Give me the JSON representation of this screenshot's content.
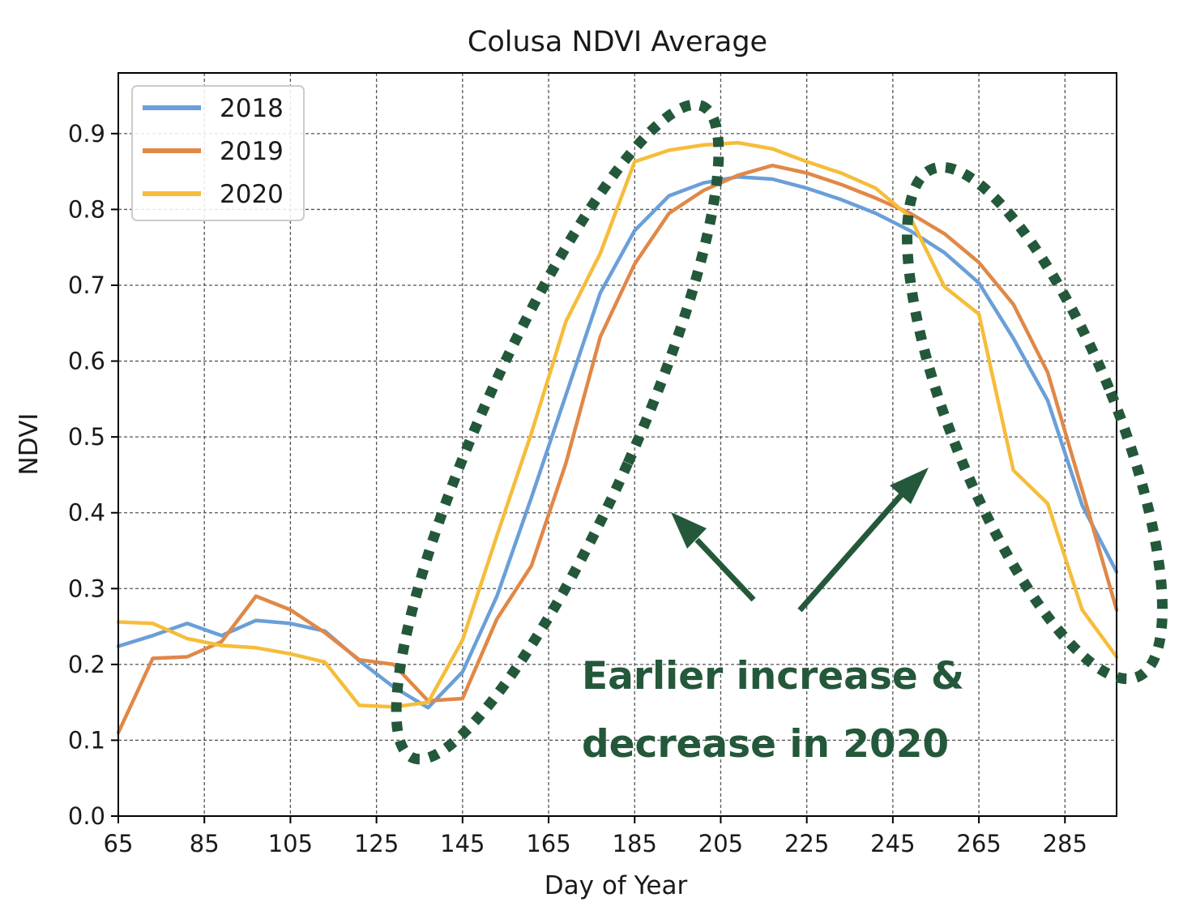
{
  "chart_data": {
    "type": "line",
    "title": "Colusa NDVI Average",
    "xlabel": "Day of Year",
    "ylabel": "NDVI",
    "xlim": [
      65,
      297
    ],
    "ylim": [
      0.0,
      0.98
    ],
    "x_ticks": [
      65,
      85,
      105,
      125,
      145,
      165,
      185,
      205,
      225,
      245,
      265,
      285
    ],
    "y_ticks": [
      0.0,
      0.1,
      0.2,
      0.3,
      0.4,
      0.5,
      0.6,
      0.7,
      0.8,
      0.9
    ],
    "grid": true,
    "legend_position": "top-left",
    "series": [
      {
        "name": "2018",
        "color": "#6a9fd8",
        "x": [
          65,
          73,
          81,
          89,
          97,
          105,
          113,
          121,
          129,
          137,
          145,
          153,
          161,
          169,
          177,
          185,
          193,
          201,
          209,
          217,
          225,
          233,
          241,
          249,
          257,
          265,
          273,
          281,
          289,
          297
        ],
        "y": [
          0.224,
          0.238,
          0.254,
          0.238,
          0.258,
          0.254,
          0.244,
          0.205,
          0.17,
          0.143,
          0.19,
          0.29,
          0.42,
          0.555,
          0.69,
          0.772,
          0.818,
          0.835,
          0.843,
          0.84,
          0.828,
          0.813,
          0.795,
          0.772,
          0.743,
          0.703,
          0.63,
          0.548,
          0.41,
          0.322
        ]
      },
      {
        "name": "2019",
        "color": "#e08848",
        "x": [
          65,
          73,
          81,
          89,
          97,
          105,
          113,
          121,
          129,
          137,
          145,
          153,
          161,
          169,
          177,
          185,
          193,
          201,
          209,
          217,
          225,
          233,
          241,
          249,
          257,
          265,
          273,
          281,
          289,
          297
        ],
        "y": [
          0.11,
          0.208,
          0.21,
          0.23,
          0.29,
          0.272,
          0.242,
          0.206,
          0.2,
          0.152,
          0.155,
          0.26,
          0.33,
          0.465,
          0.632,
          0.728,
          0.795,
          0.825,
          0.845,
          0.858,
          0.848,
          0.833,
          0.815,
          0.795,
          0.768,
          0.73,
          0.675,
          0.585,
          0.43,
          0.272
        ]
      },
      {
        "name": "2020",
        "color": "#f5bd3b",
        "x": [
          65,
          73,
          81,
          89,
          97,
          105,
          113,
          121,
          129,
          137,
          145,
          153,
          161,
          169,
          177,
          185,
          193,
          201,
          209,
          217,
          225,
          233,
          241,
          249,
          257,
          265,
          273,
          281,
          289,
          297
        ],
        "y": [
          0.256,
          0.254,
          0.234,
          0.225,
          0.222,
          0.214,
          0.203,
          0.146,
          0.144,
          0.15,
          0.232,
          0.37,
          0.505,
          0.652,
          0.742,
          0.863,
          0.878,
          0.885,
          0.888,
          0.88,
          0.863,
          0.848,
          0.828,
          0.79,
          0.698,
          0.662,
          0.456,
          0.412,
          0.272,
          0.21
        ]
      }
    ],
    "annotations": {
      "text_line1": "Earlier increase &",
      "text_line2": "decrease in 2020",
      "color": "#24583a"
    }
  }
}
